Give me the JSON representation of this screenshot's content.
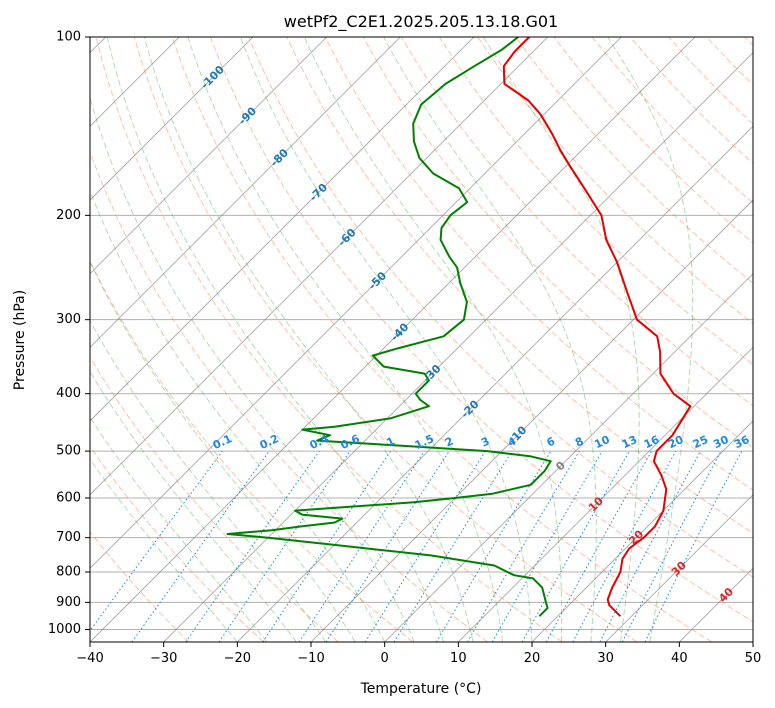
{
  "chart_data": {
    "type": "line",
    "title": "wetPf2_C2E1.2025.205.13.18.G01",
    "xlabel": "Temperature (°C)",
    "ylabel": "Pressure (hPa)",
    "xlim": [
      -40,
      50
    ],
    "ylim": [
      1050,
      100
    ],
    "y_scale": "log",
    "x_ticks": [
      -40,
      -30,
      -20,
      -10,
      0,
      10,
      20,
      30,
      40,
      50
    ],
    "y_ticks": [
      100,
      200,
      300,
      400,
      500,
      600,
      700,
      800,
      900,
      1000
    ],
    "skew_deg": 45,
    "grid": true,
    "colors": {
      "temperature": "#e60000",
      "dewpoint": "#008000",
      "dry_adiabat": "#ff7f50",
      "moist_adiabat": "#2ca02c",
      "mixing_ratio": "#1e88e5",
      "isotherm": "#808080",
      "isotherm_label_neg": "#1f77b4",
      "isotherm_label_pos": "#d62728"
    },
    "series": [
      {
        "role": "temperature",
        "color": "#e60000",
        "points": [
          [
            28.5,
            950
          ],
          [
            25.5,
            910
          ],
          [
            24.5,
            890
          ],
          [
            23.5,
            850
          ],
          [
            22.5,
            800
          ],
          [
            21.0,
            760
          ],
          [
            20.5,
            730
          ],
          [
            21.0,
            700
          ],
          [
            21.0,
            670
          ],
          [
            20.0,
            630
          ],
          [
            17.5,
            580
          ],
          [
            15.0,
            550
          ],
          [
            12.0,
            520
          ],
          [
            11.0,
            500
          ],
          [
            11.0,
            470
          ],
          [
            9.5,
            420
          ],
          [
            5.5,
            400
          ],
          [
            1.0,
            370
          ],
          [
            -2.0,
            340
          ],
          [
            -4.5,
            320
          ],
          [
            -9.5,
            300
          ],
          [
            -14.5,
            270
          ],
          [
            -20.0,
            240
          ],
          [
            -24.5,
            220
          ],
          [
            -28.5,
            200
          ],
          [
            -34.5,
            180
          ],
          [
            -39.5,
            165
          ],
          [
            -43.0,
            155
          ],
          [
            -46.5,
            145
          ],
          [
            -50.5,
            135
          ],
          [
            -54.0,
            128
          ],
          [
            -59.5,
            120
          ],
          [
            -62.0,
            112
          ],
          [
            -62.5,
            106
          ],
          [
            -62.5,
            100
          ]
        ]
      },
      {
        "role": "dewpoint",
        "color": "#008000",
        "points": [
          [
            17.5,
            950
          ],
          [
            17.5,
            920
          ],
          [
            16.5,
            900
          ],
          [
            14.0,
            850
          ],
          [
            11.5,
            820
          ],
          [
            8.5,
            810
          ],
          [
            4.5,
            780
          ],
          [
            -5.5,
            750
          ],
          [
            -20.0,
            720
          ],
          [
            -30.0,
            700
          ],
          [
            -36.0,
            690
          ],
          [
            -30.5,
            680
          ],
          [
            -27.0,
            670
          ],
          [
            -23.0,
            660
          ],
          [
            -22.5,
            650
          ],
          [
            -28.5,
            640
          ],
          [
            -30.0,
            630
          ],
          [
            -15.0,
            610
          ],
          [
            -10.0,
            600
          ],
          [
            -5.5,
            590
          ],
          [
            -1.5,
            570
          ],
          [
            -1.5,
            550
          ],
          [
            -1.5,
            540
          ],
          [
            -2.0,
            520
          ],
          [
            -5.5,
            510
          ],
          [
            -12.0,
            500
          ],
          [
            -24.0,
            490
          ],
          [
            -36.5,
            480
          ],
          [
            -35.5,
            470
          ],
          [
            -40.0,
            460
          ],
          [
            -36.0,
            455
          ],
          [
            -29.5,
            440
          ],
          [
            -26.0,
            420
          ],
          [
            -28.0,
            410
          ],
          [
            -29.5,
            400
          ],
          [
            -29.5,
            380
          ],
          [
            -31.0,
            370
          ],
          [
            -37.5,
            360
          ],
          [
            -40.5,
            345
          ],
          [
            -38.0,
            335
          ],
          [
            -33.5,
            320
          ],
          [
            -33.0,
            300
          ],
          [
            -35.0,
            280
          ],
          [
            -38.5,
            260
          ],
          [
            -41.0,
            245
          ],
          [
            -43.5,
            235
          ],
          [
            -47.0,
            220
          ],
          [
            -48.5,
            210
          ],
          [
            -49.0,
            200
          ],
          [
            -48.5,
            190
          ],
          [
            -51.5,
            180
          ],
          [
            -57.0,
            170
          ],
          [
            -61.0,
            160
          ],
          [
            -64.0,
            150
          ],
          [
            -66.5,
            140
          ],
          [
            -68.0,
            130
          ],
          [
            -67.5,
            120
          ],
          [
            -66.0,
            112
          ],
          [
            -64.5,
            105
          ],
          [
            -64.0,
            100
          ]
        ]
      }
    ],
    "isotherm_labels_negative": [
      "-100",
      "-90",
      "-80",
      "-70",
      "-60",
      "-50",
      "-40",
      "-30",
      "-20"
    ],
    "isotherm_labels_positive": [
      "0",
      "10",
      "20",
      "30",
      "40"
    ],
    "mixing_ratio_labels": [
      "0.1",
      "0.2",
      "0.4",
      "0.6",
      "1",
      "1.5",
      "2",
      "3",
      "4",
      "6",
      "8",
      "10",
      "13",
      "16",
      "20",
      "25",
      "30",
      "36"
    ],
    "extra_label": "-10"
  }
}
